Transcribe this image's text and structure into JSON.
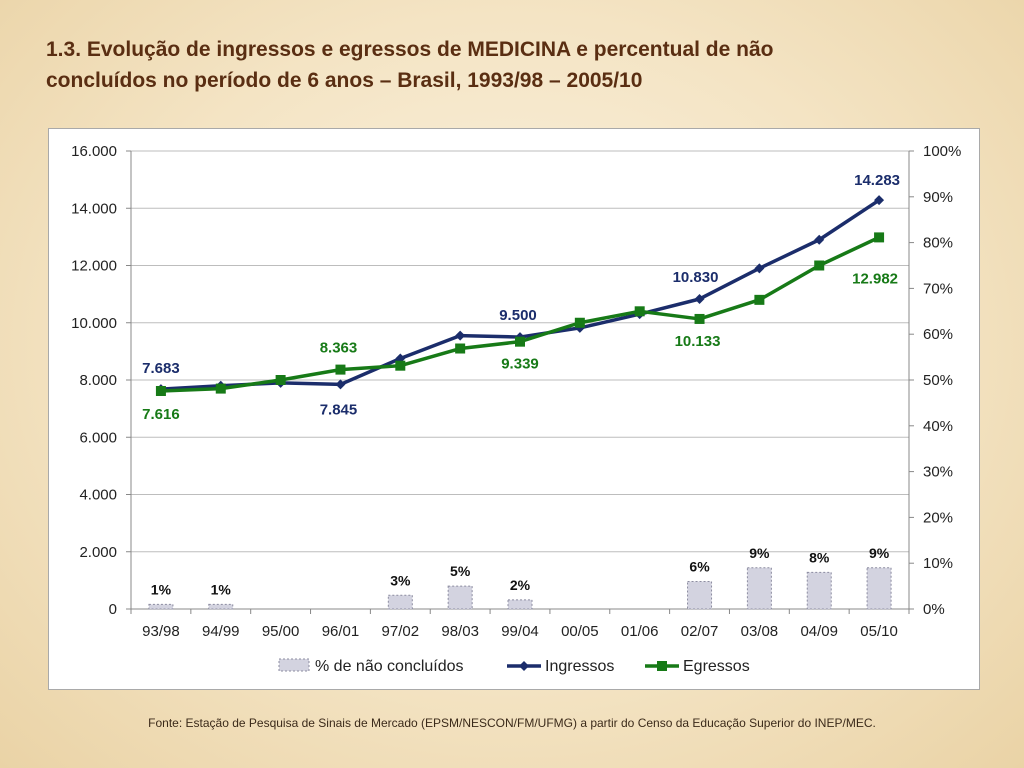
{
  "slide": {
    "title_line1": "1.3.  Evolução de ingressos e egressos de MEDICINA e percentual de não",
    "title_line2": "concluídos no período de 6 anos – Brasil, 1993/98 – 2005/10",
    "source": "Fonte: Estação de Pesquisa de Sinais de Mercado (EPSM/NESCON/FM/UFMG) a partir do Censo da Educação Superior do INEP/MEC."
  },
  "colors": {
    "ingressos": "#1b2d6b",
    "egressos": "#177a17",
    "bars_fill": "#d3d3e0",
    "bars_stroke": "#8c8ca0",
    "grid": "#bdbdbd"
  },
  "chart_data": {
    "type": "bar+line",
    "categories": [
      "93/98",
      "94/99",
      "95/00",
      "96/01",
      "97/02",
      "98/03",
      "99/04",
      "00/05",
      "01/06",
      "02/07",
      "03/08",
      "04/09",
      "05/10"
    ],
    "y_left": {
      "min": 0,
      "max": 16000,
      "ticks": [
        "0",
        "2.000",
        "4.000",
        "6.000",
        "8.000",
        "10.000",
        "12.000",
        "14.000",
        "16.000"
      ]
    },
    "y_right": {
      "min": 0,
      "max": 100,
      "ticks": [
        "0%",
        "10%",
        "20%",
        "30%",
        "40%",
        "50%",
        "60%",
        "70%",
        "80%",
        "90%",
        "100%"
      ]
    },
    "grid": true,
    "legend_position": "bottom",
    "series": [
      {
        "name": "% de não concluídos",
        "type": "bar",
        "axis": "right",
        "values": [
          1,
          1,
          null,
          null,
          3,
          5,
          2,
          null,
          null,
          6,
          9,
          8,
          9
        ],
        "labels": [
          "1%",
          "1%",
          "",
          "",
          "3%",
          "5%",
          "2%",
          "",
          "",
          "6%",
          "9%",
          "8%",
          "9%"
        ]
      },
      {
        "name": "Ingressos",
        "type": "line",
        "axis": "left",
        "values": [
          7683,
          7800,
          7900,
          7845,
          8750,
          9550,
          9500,
          9820,
          10300,
          10830,
          11900,
          12900,
          14283
        ]
      },
      {
        "name": "Egressos",
        "type": "line",
        "axis": "left",
        "values": [
          7616,
          7700,
          8000,
          8363,
          8500,
          9100,
          9339,
          10000,
          10400,
          10133,
          10800,
          12000,
          12982
        ]
      }
    ],
    "annotations": [
      {
        "series": "Ingressos",
        "index": 0,
        "text": "7.683"
      },
      {
        "series": "Ingressos",
        "index": 3,
        "text": "7.845"
      },
      {
        "series": "Ingressos",
        "index": 6,
        "text": "9.500"
      },
      {
        "series": "Ingressos",
        "index": 9,
        "text": "10.830"
      },
      {
        "series": "Ingressos",
        "index": 12,
        "text": "14.283"
      },
      {
        "series": "Egressos",
        "index": 0,
        "text": "7.616"
      },
      {
        "series": "Egressos",
        "index": 3,
        "text": "8.363"
      },
      {
        "series": "Egressos",
        "index": 6,
        "text": "9.339"
      },
      {
        "series": "Egressos",
        "index": 9,
        "text": "10.133"
      },
      {
        "series": "Egressos",
        "index": 12,
        "text": "12.982"
      }
    ]
  }
}
